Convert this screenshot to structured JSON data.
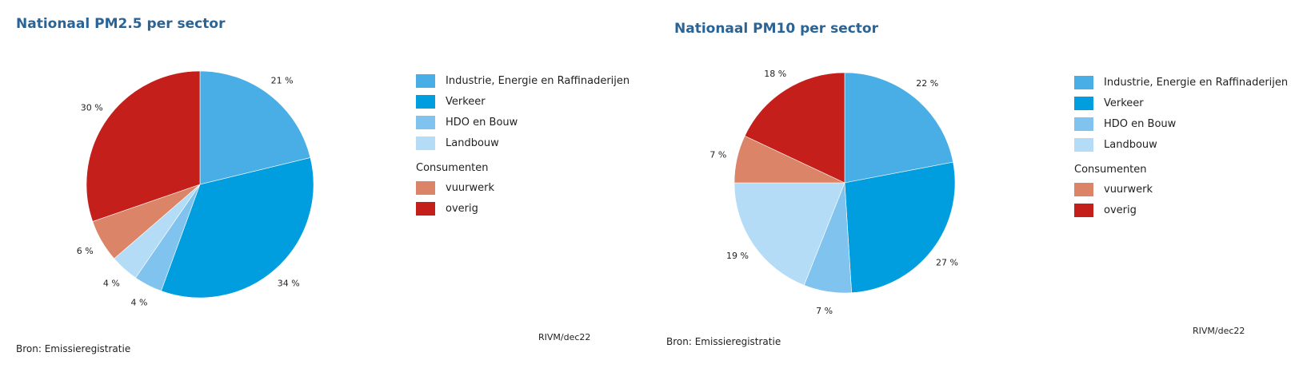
{
  "chart_data": [
    {
      "type": "pie",
      "title": "Nationaal PM2.5 per sector",
      "categories": [
        "Industrie, Energie en Raffinaderijen",
        "Verkeer",
        "HDO en Bouw",
        "Landbouw",
        "vuurwerk",
        "overig"
      ],
      "values": [
        21,
        34,
        4,
        4,
        6,
        30
      ],
      "value_labels": [
        "21 %",
        "34 %",
        "4 %",
        "4 %",
        "6 %",
        "30 %"
      ],
      "colors": [
        "#4aaee6",
        "#009ddf",
        "#7fc3ee",
        "#b5dcf6",
        "#dc8468",
        "#c41f1a"
      ],
      "legend_heading": "Consumenten",
      "legend_placement": "right",
      "source": "Bron: Emissieregistratie",
      "credit": "RIVM/dec22"
    },
    {
      "type": "pie",
      "title": "Nationaal PM10 per sector",
      "categories": [
        "Industrie, Energie en Raffinaderijen",
        "Verkeer",
        "HDO en Bouw",
        "Landbouw",
        "vuurwerk",
        "overig"
      ],
      "values": [
        22,
        27,
        7,
        19,
        7,
        18
      ],
      "value_labels": [
        "22 %",
        "27 %",
        "7 %",
        "19 %",
        "7 %",
        "18 %"
      ],
      "colors": [
        "#4aaee6",
        "#009ddf",
        "#7fc3ee",
        "#b5dcf6",
        "#dc8468",
        "#c41f1a"
      ],
      "legend_heading": "Consumenten",
      "legend_placement": "right",
      "source": "Bron: Emissieregistratie",
      "credit": "RIVM/dec22"
    }
  ]
}
